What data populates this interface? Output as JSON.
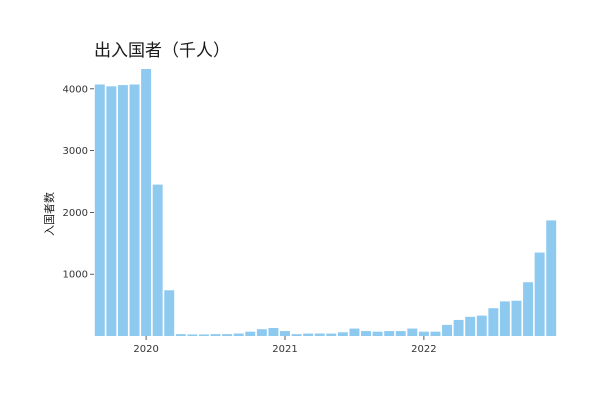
{
  "chart_data": {
    "type": "bar",
    "title": "出入国者（千人）",
    "xlabel": "",
    "ylabel": "入国者数",
    "ylim": [
      0,
      4500
    ],
    "grid": false,
    "bar_color": "#8ecaef",
    "yticks": [
      1000,
      2000,
      3000,
      4000
    ],
    "xticks": [
      {
        "label": "2020",
        "index": 4
      },
      {
        "label": "2021",
        "index": 16
      },
      {
        "label": "2022",
        "index": 28
      }
    ],
    "categories": [
      "2019-09",
      "2019-10",
      "2019-11",
      "2019-12",
      "2020-01",
      "2020-02",
      "2020-03",
      "2020-04",
      "2020-05",
      "2020-06",
      "2020-07",
      "2020-08",
      "2020-09",
      "2020-10",
      "2020-11",
      "2020-12",
      "2021-01",
      "2021-02",
      "2021-03",
      "2021-04",
      "2021-05",
      "2021-06",
      "2021-07",
      "2021-08",
      "2021-09",
      "2021-10",
      "2021-11",
      "2021-12",
      "2022-01",
      "2022-02",
      "2022-03",
      "2022-04",
      "2022-05",
      "2022-06",
      "2022-07",
      "2022-08",
      "2022-09",
      "2022-10",
      "2022-11",
      "2022-12"
    ],
    "values": [
      4070,
      4040,
      4060,
      4070,
      4320,
      2450,
      740,
      30,
      25,
      25,
      30,
      30,
      40,
      70,
      110,
      130,
      80,
      30,
      40,
      40,
      40,
      60,
      120,
      80,
      70,
      80,
      80,
      120,
      70,
      70,
      180,
      260,
      310,
      330,
      450,
      560,
      570,
      870,
      1350,
      1870
    ]
  }
}
